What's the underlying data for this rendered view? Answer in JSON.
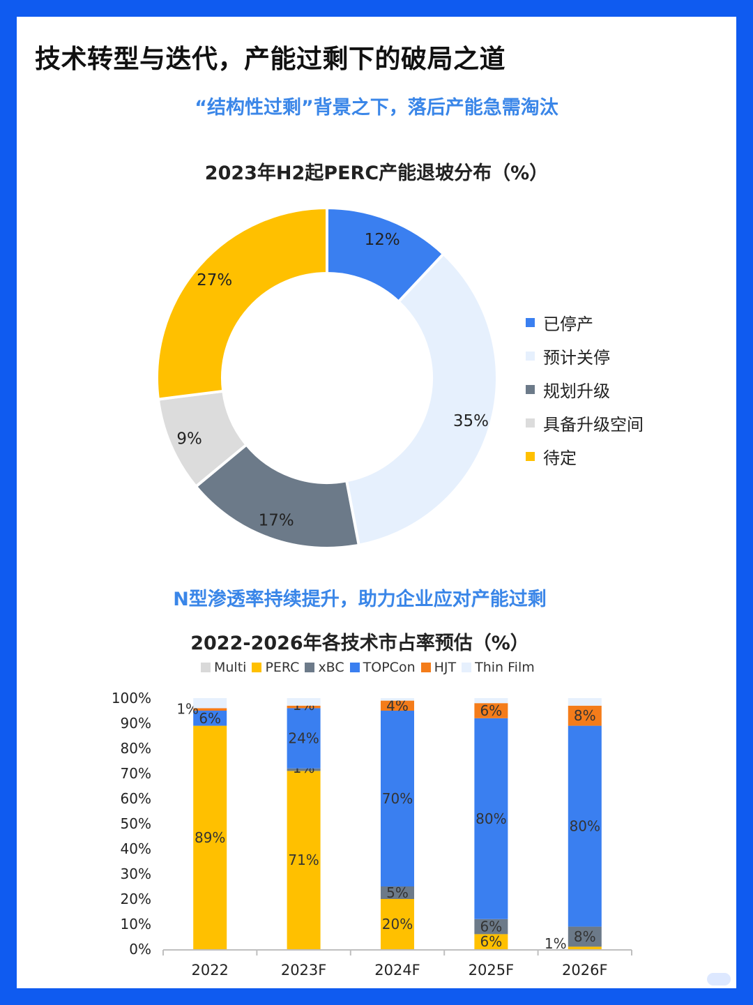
{
  "page": {
    "title": "技术转型与迭代，产能过剩下的破局之道",
    "subtitle_1": "“结构性过剩”背景之下，落后产能急需淘汰",
    "subtitle_2": "N型渗透率持续提升，助力企业应对产能过剩"
  },
  "colors": {
    "background_frame": "#0f5bf0",
    "subtitle": "#3a86e8"
  },
  "chart_data": [
    {
      "type": "pie",
      "style": "donut",
      "title": "2023年H2起PERC产能退坡分布（%）",
      "legend_position": "right",
      "slices": [
        {
          "label": "已停产",
          "value": 12,
          "display": "12%",
          "color": "#3a7ff0"
        },
        {
          "label": "预计关停",
          "value": 35,
          "display": "35%",
          "color": "#e6f0fd"
        },
        {
          "label": "规划升级",
          "value": 17,
          "display": "17%",
          "color": "#6c7a89"
        },
        {
          "label": "具备升级空间",
          "value": 9,
          "display": "9%",
          "color": "#dcdcdc"
        },
        {
          "label": "待定",
          "value": 27,
          "display": "27%",
          "color": "#ffc000"
        }
      ]
    },
    {
      "type": "bar",
      "stacked": true,
      "title": "2022-2026年各技术市占率预估（%）",
      "legend_position": "top",
      "categories": [
        "2022",
        "2023F",
        "2024F",
        "2025F",
        "2026F"
      ],
      "ylim": [
        0,
        100
      ],
      "yticks": [
        "0%",
        "10%",
        "20%",
        "30%",
        "40%",
        "50%",
        "60%",
        "70%",
        "80%",
        "90%",
        "100%"
      ],
      "series": [
        {
          "name": "Multi",
          "color": "#d9d9d9",
          "values": [
            0,
            0,
            0,
            0,
            0
          ],
          "labels": [
            "",
            "",
            "",
            "",
            ""
          ]
        },
        {
          "name": "PERC",
          "color": "#ffc000",
          "values": [
            89,
            71,
            20,
            6,
            1
          ],
          "labels": [
            "89%",
            "71%",
            "20%",
            "6%",
            "1%"
          ]
        },
        {
          "name": "xBC",
          "color": "#6c7a89",
          "values": [
            0,
            1,
            5,
            6,
            8
          ],
          "labels": [
            "",
            "1%",
            "5%",
            "6%",
            "8%"
          ]
        },
        {
          "name": "TOPCon",
          "color": "#3a7ff0",
          "values": [
            6,
            24,
            70,
            80,
            80
          ],
          "labels": [
            "6%",
            "24%",
            "70%",
            "80%",
            "80%"
          ]
        },
        {
          "name": "HJT",
          "color": "#f47c1a",
          "values": [
            1,
            1,
            4,
            6,
            8
          ],
          "labels": [
            "1%",
            "1%",
            "4%",
            "6%",
            "8%"
          ]
        },
        {
          "name": "Thin Film",
          "color": "#e6f0fd",
          "values": [
            4,
            3,
            1,
            2,
            3
          ],
          "labels": [
            "",
            "",
            "",
            "",
            ""
          ]
        }
      ]
    }
  ]
}
